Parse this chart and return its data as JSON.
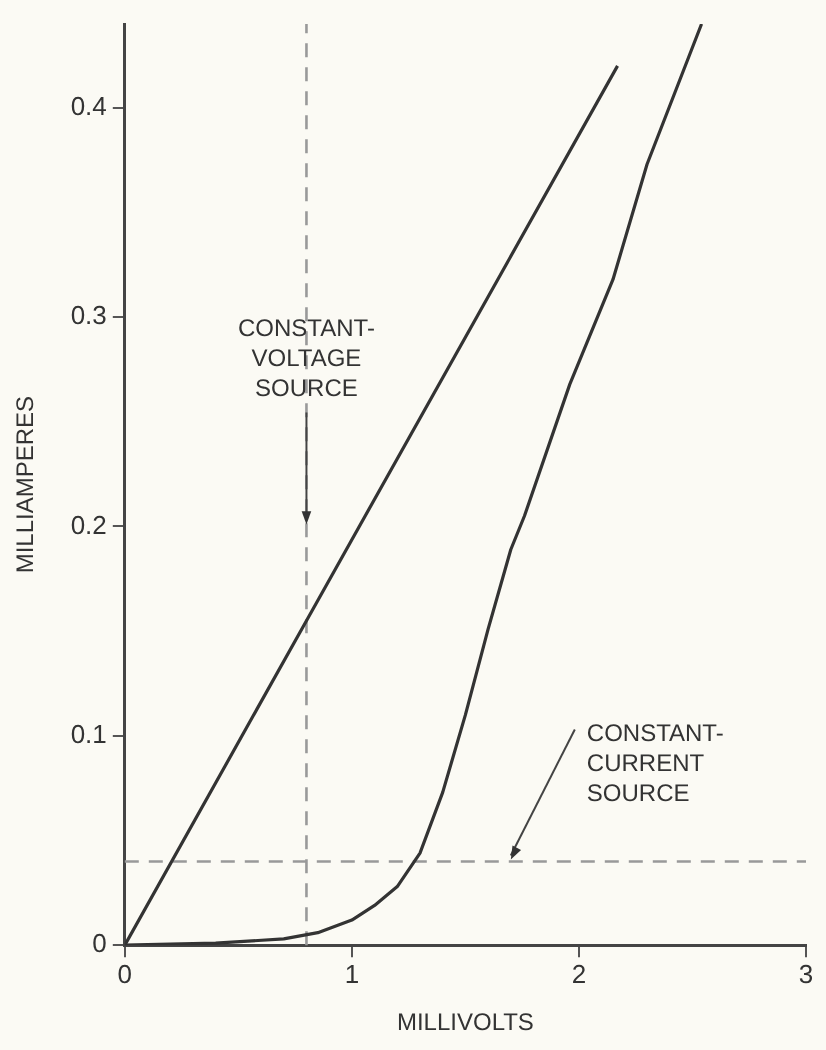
{
  "chart_data": {
    "type": "line",
    "xlabel": "MILLIVOLTS",
    "ylabel": "MILLIAMPERES",
    "xlim": [
      0,
      3
    ],
    "xticks": [
      0,
      1,
      2,
      3
    ],
    "ylim": [
      0,
      0.44
    ],
    "yticks": [
      0,
      0.1,
      0.2,
      0.3,
      0.4
    ],
    "grid": false,
    "legend": false,
    "marker": "none",
    "line_style": "solid",
    "series": [
      {
        "color": "#333333",
        "x": [
          0,
          0.8,
          2.17
        ],
        "values": [
          0,
          0.155,
          0.42
        ]
      },
      {
        "color": "#333333",
        "x": [
          0,
          0.4,
          0.7,
          0.85,
          1,
          1.1,
          1.2,
          1.3,
          1.4,
          1.5,
          1.6,
          1.7,
          1.76,
          1.96,
          2.15,
          2.3,
          2.54
        ],
        "values": [
          0,
          0.001,
          0.003,
          0.006,
          0.012,
          0.019,
          0.028,
          0.044,
          0.073,
          0.11,
          0.151,
          0.189,
          0.205,
          0.268,
          0.318,
          0.373,
          0.44
        ]
      }
    ],
    "ref_lines": [
      {
        "axis": "x",
        "value": 0.8,
        "line_style": "dashed",
        "color": "#999999"
      },
      {
        "axis": "y",
        "value": 0.04,
        "line_style": "dashed",
        "color": "#999999"
      }
    ],
    "annotations": [
      {
        "text": "CONSTANT-\nVOLTAGE\nSOURCE",
        "x": 0.8,
        "y": 0.2
      },
      {
        "text": "CONSTANT-\nCURRENT\nSOURCE",
        "x": 1.7,
        "y": 0.04
      }
    ]
  }
}
